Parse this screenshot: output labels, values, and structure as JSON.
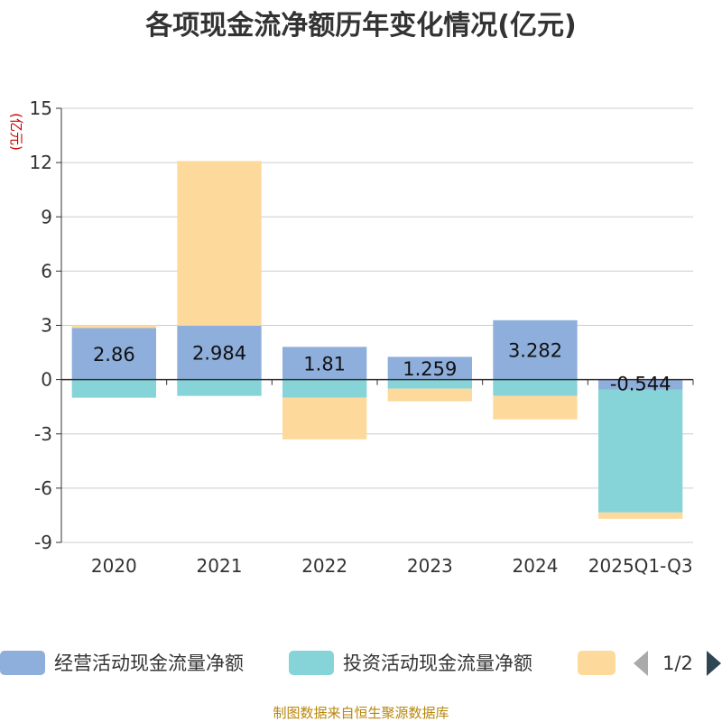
{
  "chart_data": {
    "type": "bar",
    "stacked": true,
    "title": "各项现金流净额历年变化情况(亿元)",
    "ylabel": "(亿元)",
    "ylim": [
      -9,
      15
    ],
    "yticks": [
      15,
      12,
      9,
      6,
      3,
      0,
      -3,
      -6,
      -9
    ],
    "ytick_labels": [
      "15",
      "12",
      "9",
      "6",
      "3",
      "0",
      "-3",
      "-6",
      "-9"
    ],
    "categories": [
      "2020",
      "2021",
      "2022",
      "2023",
      "2024",
      "2025Q1-Q3"
    ],
    "series": [
      {
        "name": "经营活动现金流量净额",
        "color": "#8eaedb",
        "values": [
          2.86,
          2.984,
          1.81,
          1.259,
          3.282,
          -0.544
        ],
        "labels": [
          "2.86",
          "2.984",
          "1.81",
          "1.259",
          "3.282",
          "-0.544"
        ]
      },
      {
        "name": "投资活动现金流量净额",
        "color": "#86d4d8",
        "values": [
          -1.0,
          -0.9,
          -1.0,
          -0.5,
          -0.9,
          -6.8
        ]
      },
      {
        "name": "",
        "color": "#fdd99b",
        "values": [
          0.15,
          9.1,
          -2.3,
          -0.7,
          -1.3,
          -0.35
        ]
      }
    ],
    "legend_position": "bottom"
  },
  "legend": {
    "page": "1/2"
  },
  "source": "制图数据来自恒生聚源数据库"
}
